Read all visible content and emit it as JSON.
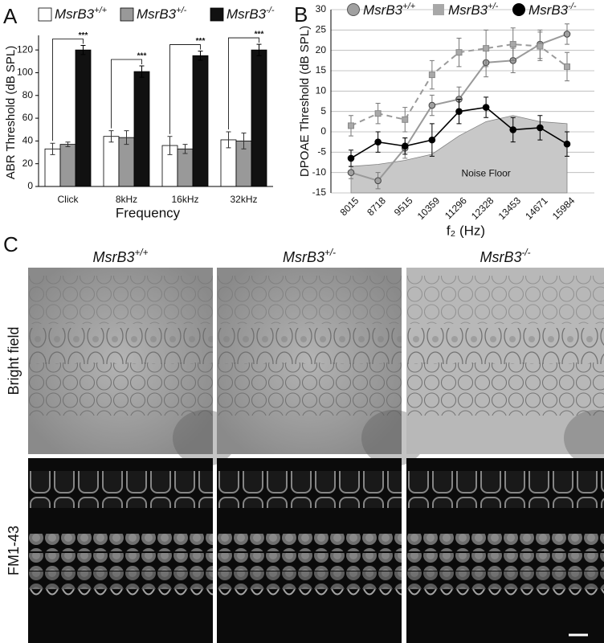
{
  "panels": {
    "a": "A",
    "b": "B",
    "c": "C"
  },
  "chart_data": [
    {
      "type": "bar",
      "ylabel": "ABR Threshold (dB SPL)",
      "xlabel": "Frequency",
      "categories": [
        "Click",
        "8kHz",
        "16kHz",
        "32kHz"
      ],
      "ylim": [
        0,
        130
      ],
      "yticks": [
        0,
        20,
        40,
        60,
        80,
        100,
        120
      ],
      "grid": false,
      "legend": "top",
      "series": [
        {
          "name": "MsrB3+/+",
          "color": "#ffffff",
          "values": [
            33,
            44,
            36,
            41
          ],
          "errors": [
            5,
            5,
            8,
            7
          ]
        },
        {
          "name": "MsrB3+/-",
          "color": "#999999",
          "values": [
            37,
            43,
            33,
            40
          ],
          "errors": [
            2,
            6,
            4,
            7
          ]
        },
        {
          "name": "MsrB3-/-",
          "color": "#111111",
          "values": [
            120,
            101,
            115,
            120
          ],
          "errors": [
            4,
            5,
            4,
            5
          ]
        }
      ],
      "annotations": [
        "***",
        "***",
        "***",
        "***"
      ]
    },
    {
      "type": "line",
      "ylabel": "DPOAE Threshold (dB SPL)",
      "xlabel": "f₂ (Hz)",
      "categories": [
        "8015",
        "8718",
        "9515",
        "10359",
        "11296",
        "12328",
        "13453",
        "14671",
        "15984"
      ],
      "ylim": [
        -15,
        30
      ],
      "yticks": [
        -15,
        -10,
        -5,
        0,
        5,
        10,
        15,
        20,
        25,
        30
      ],
      "grid": true,
      "legend": "top",
      "series": [
        {
          "name": "MsrB3+/+",
          "color": "#a0a0a0",
          "marker": "circle",
          "dashed": false,
          "values": [
            -10,
            -12,
            -4,
            6.5,
            8,
            17,
            17.5,
            21.5,
            24
          ],
          "errors": [
            1.5,
            2,
            2.5,
            2.5,
            3,
            3.5,
            3,
            3.5,
            2.5
          ]
        },
        {
          "name": "MsrB3+/-",
          "color": "#a8a8a8",
          "marker": "square",
          "dashed": true,
          "values": [
            1.5,
            4.5,
            3,
            14,
            19.5,
            20.5,
            21.5,
            21,
            16
          ],
          "errors": [
            2.5,
            2.5,
            3,
            3.5,
            3.5,
            4.5,
            4,
            3.5,
            3.5
          ]
        },
        {
          "name": "MsrB3-/-",
          "color": "#000000",
          "marker": "circle",
          "dashed": false,
          "values": [
            -6.5,
            -2.5,
            -3.5,
            -2,
            5,
            6,
            0.5,
            1,
            -3
          ],
          "errors": [
            2,
            2.5,
            2,
            4,
            3,
            2.5,
            3,
            3,
            3
          ]
        },
        {
          "name": "Noise Floor",
          "color": "#c8c8c8",
          "marker": "area",
          "values": [
            -8.5,
            -8,
            -7,
            -5.5,
            -1,
            2.5,
            4,
            2.5,
            2
          ]
        }
      ]
    }
  ],
  "image_grid": {
    "columns": [
      "MsrB3+/+",
      "MsrB3+/-",
      "MsrB3-/-"
    ],
    "rows": [
      "Bright field",
      "FM1-43"
    ]
  }
}
